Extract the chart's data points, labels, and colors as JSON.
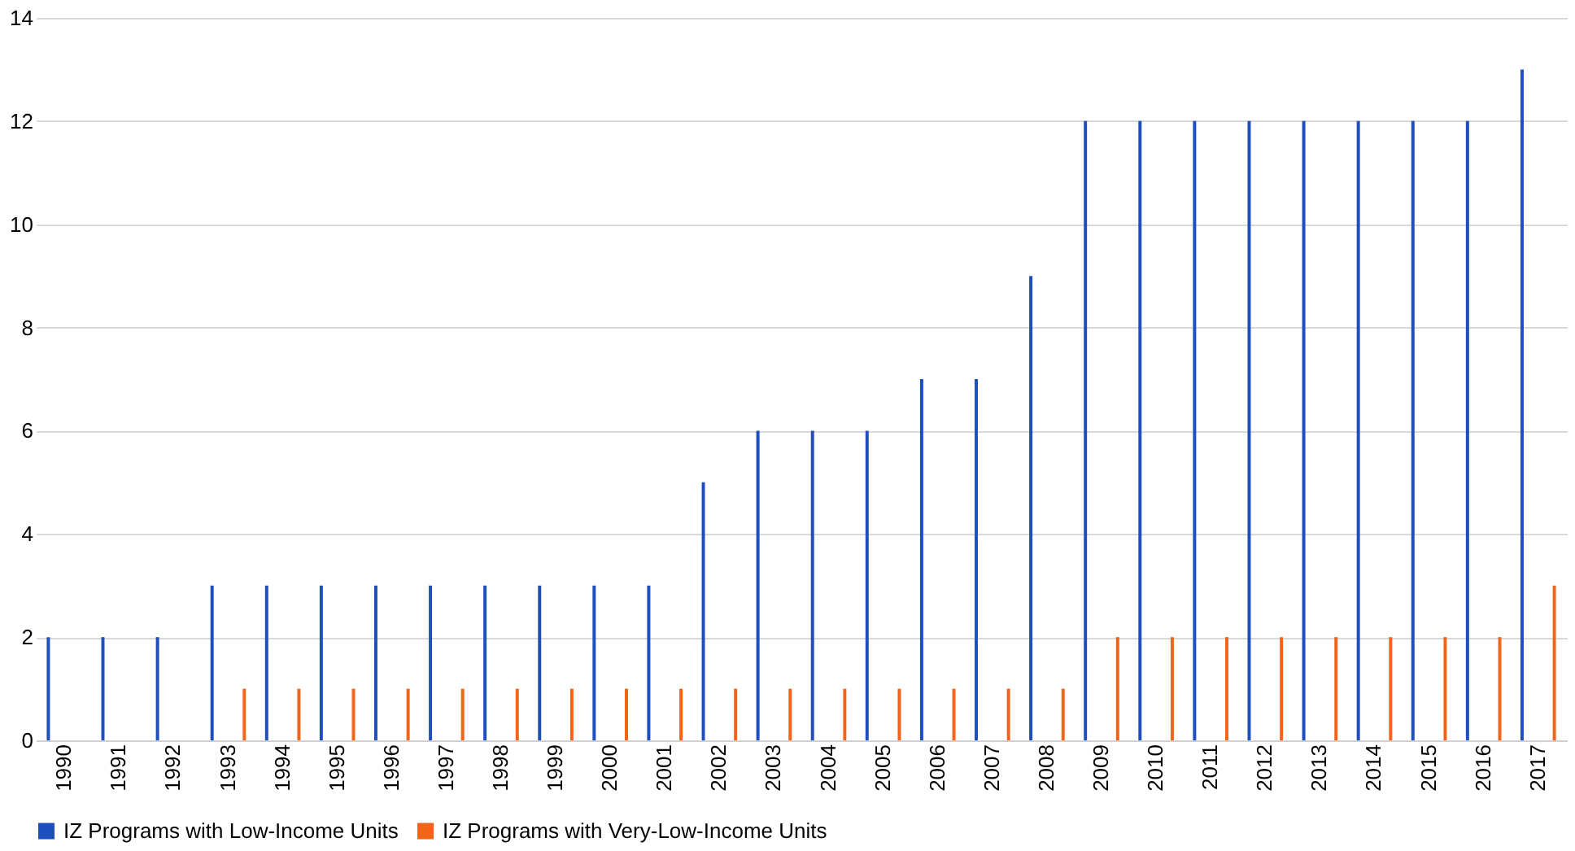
{
  "chart_data": {
    "type": "bar",
    "categories": [
      "1990",
      "1991",
      "1992",
      "1993",
      "1994",
      "1995",
      "1996",
      "1997",
      "1998",
      "1999",
      "2000",
      "2001",
      "2002",
      "2003",
      "2004",
      "2005",
      "2006",
      "2007",
      "2008",
      "2009",
      "2010",
      "2011",
      "2012",
      "2013",
      "2014",
      "2015",
      "2016",
      "2017"
    ],
    "series": [
      {
        "name": "IZ Programs with Low-Income Units",
        "color": "#1f4ebf",
        "values": [
          2,
          2,
          2,
          3,
          3,
          3,
          3,
          3,
          3,
          3,
          3,
          3,
          5,
          6,
          6,
          6,
          7,
          7,
          9,
          12,
          12,
          12,
          12,
          12,
          12,
          12,
          12,
          13
        ]
      },
      {
        "name": "IZ Programs with Very-Low-Income Units",
        "color": "#f26419",
        "values": [
          null,
          null,
          null,
          1,
          1,
          1,
          1,
          1,
          1,
          1,
          1,
          1,
          1,
          1,
          1,
          1,
          1,
          1,
          1,
          2,
          2,
          2,
          2,
          2,
          2,
          2,
          2,
          3
        ]
      }
    ],
    "ylim": [
      0,
      14
    ],
    "yticks": [
      0,
      2,
      4,
      6,
      8,
      10,
      12,
      14
    ],
    "grid": "y",
    "legend": "bottom"
  }
}
